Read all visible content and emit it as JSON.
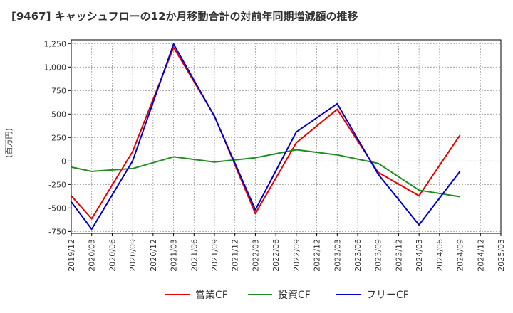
{
  "chart_data": {
    "type": "line",
    "title": "[9467]  キャッシュフローの12か月移動合計の対前年同期増減額の推移",
    "ylabel": "(百万円)",
    "xlabel": "",
    "ylim": [
      -770,
      1290
    ],
    "yticks": [
      -750,
      -500,
      -250,
      0,
      250,
      500,
      750,
      1000,
      1250
    ],
    "ytick_labels": [
      "-750",
      "-500",
      "-250",
      "0",
      "250",
      "500",
      "750",
      "1,000",
      "1,250"
    ],
    "categories": [
      "2019/12",
      "2020/03",
      "2020/06",
      "2020/09",
      "2020/12",
      "2021/03",
      "2021/06",
      "2021/09",
      "2021/12",
      "2022/03",
      "2022/06",
      "2022/09",
      "2022/12",
      "2023/03",
      "2023/06",
      "2023/09",
      "2023/12",
      "2024/03",
      "2024/06",
      "2024/09",
      "2024/12",
      "2025/03"
    ],
    "grid": true,
    "legend_position": "bottom",
    "series": [
      {
        "name": "営業CF",
        "color": "#e60000",
        "values": [
          -370,
          -615,
          null,
          100,
          null,
          1210,
          null,
          480,
          null,
          -560,
          null,
          195,
          null,
          550,
          null,
          -120,
          null,
          -370,
          null,
          275,
          null,
          null
        ]
      },
      {
        "name": "投資CF",
        "color": "#228b22",
        "values": [
          -65,
          -110,
          null,
          -80,
          null,
          45,
          null,
          -10,
          null,
          35,
          null,
          120,
          null,
          65,
          null,
          -25,
          null,
          -310,
          null,
          -380,
          null,
          null
        ]
      },
      {
        "name": "フリーCF",
        "color": "#0000cc",
        "values": [
          -435,
          -725,
          null,
          0,
          null,
          1245,
          null,
          475,
          null,
          -520,
          null,
          310,
          null,
          610,
          null,
          -140,
          null,
          -680,
          null,
          -110,
          null,
          null
        ]
      }
    ]
  }
}
